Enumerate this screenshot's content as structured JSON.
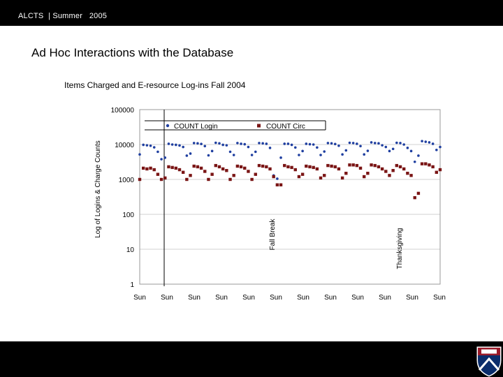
{
  "header": {
    "org": "ALCTS",
    "separator": "|",
    "season": "Summer",
    "year": "2005"
  },
  "slide": {
    "title": "Ad Hoc Interactions with the Database"
  },
  "logo": {
    "icon": "university-shield-icon"
  },
  "chart_data": {
    "type": "scatter",
    "title": "Items Charged and E-resource Log-ins Fall 2004",
    "ylabel": "Log of Logins & Charge Counts",
    "yscale": "log",
    "ylim": [
      1,
      100000
    ],
    "yticks": [
      "100000",
      "10000",
      "1000",
      "100",
      "10",
      "1"
    ],
    "xtick_labels": [
      "Sun",
      "Sun",
      "Sun",
      "Sun",
      "Sun",
      "Sun",
      "Sun",
      "Sun",
      "Sun",
      "Sun",
      "Sun",
      "Sun"
    ],
    "legend": {
      "placement": "top",
      "entries": [
        "COUNT Login",
        "COUNT Circ"
      ]
    },
    "annotations": [
      "Fall Break",
      "Thanksgiving"
    ],
    "series": [
      {
        "name": "COUNT Login",
        "color": "#1f3fa0",
        "marker": "circle",
        "values": [
          5200,
          9800,
          9500,
          9200,
          8300,
          6200,
          3800,
          4200,
          10500,
          10000,
          9800,
          9400,
          8500,
          4800,
          5500,
          11000,
          10800,
          10400,
          9000,
          4900,
          6500,
          11200,
          10800,
          9800,
          9500,
          6200,
          5000,
          11000,
          10500,
          10200,
          8500,
          5000,
          6200,
          11000,
          10800,
          10500,
          8000,
          1300,
          1050,
          4200,
          10500,
          10500,
          9800,
          8200,
          5000,
          6500,
          10500,
          10200,
          10000,
          8200,
          5000,
          6300,
          11000,
          10800,
          10300,
          9200,
          5200,
          6800,
          11200,
          11000,
          10500,
          9000,
          5200,
          6600,
          11500,
          11000,
          10800,
          9500,
          8500,
          6500,
          7500,
          11200,
          11000,
          10000,
          8000,
          6500,
          3200,
          4800,
          12500,
          12000,
          11500,
          10500,
          7000,
          8500
        ]
      },
      {
        "name": "COUNT Circ",
        "color": "#7a1515",
        "marker": "square",
        "values": [
          1000,
          2100,
          2000,
          2100,
          1900,
          1400,
          1000,
          1100,
          2300,
          2200,
          2100,
          1900,
          1600,
          1000,
          1300,
          2400,
          2300,
          2100,
          1700,
          1000,
          1400,
          2500,
          2300,
          2000,
          1800,
          1000,
          1300,
          2400,
          2300,
          2100,
          1700,
          1000,
          1400,
          2500,
          2400,
          2300,
          2000,
          1200,
          700,
          700,
          2500,
          2300,
          2200,
          1900,
          1200,
          1400,
          2400,
          2300,
          2200,
          2000,
          1100,
          1300,
          2500,
          2400,
          2300,
          2000,
          1100,
          1500,
          2600,
          2600,
          2500,
          2100,
          1200,
          1500,
          2600,
          2500,
          2300,
          2000,
          1700,
          1300,
          1800,
          2500,
          2300,
          2000,
          1500,
          1300,
          300,
          400,
          2800,
          2800,
          2600,
          2300,
          1600,
          1900
        ]
      }
    ]
  }
}
